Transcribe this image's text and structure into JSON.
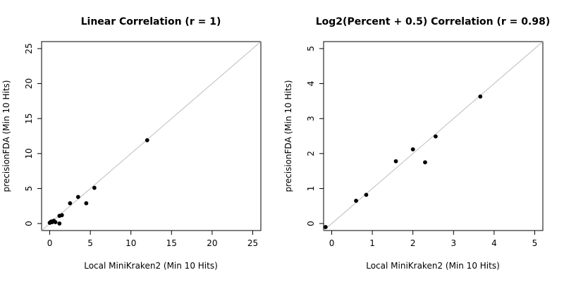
{
  "chart_data": [
    {
      "type": "scatter",
      "title": "Linear Correlation (r = 1)",
      "xlabel": "Local MiniKraken2 (Min 10 Hits)",
      "ylabel": "precisionFDA (Min 10 Hits)",
      "xlim": [
        -1,
        26
      ],
      "ylim": [
        -1,
        26
      ],
      "xticks": [
        "0",
        "5",
        "10",
        "15",
        "20",
        "25"
      ],
      "yticks": [
        "0",
        "5",
        "10",
        "15",
        "20",
        "25"
      ],
      "reference_line": "y = x",
      "grid": false,
      "points": [
        {
          "x": 0.0,
          "y": 0.1
        },
        {
          "x": 0.1,
          "y": 0.2
        },
        {
          "x": 0.2,
          "y": 0.3
        },
        {
          "x": 0.3,
          "y": 0.2
        },
        {
          "x": 0.5,
          "y": 0.4
        },
        {
          "x": 0.7,
          "y": 0.2
        },
        {
          "x": 1.2,
          "y": 0.0
        },
        {
          "x": 1.2,
          "y": 1.1
        },
        {
          "x": 1.5,
          "y": 1.2
        },
        {
          "x": 2.5,
          "y": 2.9
        },
        {
          "x": 3.5,
          "y": 3.8
        },
        {
          "x": 4.5,
          "y": 2.9
        },
        {
          "x": 5.5,
          "y": 5.1
        },
        {
          "x": 12.0,
          "y": 11.9
        }
      ]
    },
    {
      "type": "scatter",
      "title": "Log2(Percent + 0.5) Correlation (r = 0.98)",
      "xlabel": "Local MiniKraken2 (Min 10 Hits)",
      "ylabel": "precisionFDA (Min 10 Hits)",
      "xlim": [
        -0.2,
        5.2
      ],
      "ylim": [
        -0.2,
        5.2
      ],
      "xticks": [
        "0",
        "1",
        "2",
        "3",
        "4",
        "5"
      ],
      "yticks": [
        "0",
        "1",
        "2",
        "3",
        "4",
        "5"
      ],
      "reference_line": "y = x",
      "grid": false,
      "points": [
        {
          "x": -0.15,
          "y": -0.1
        },
        {
          "x": 0.6,
          "y": 0.65
        },
        {
          "x": 0.85,
          "y": 0.82
        },
        {
          "x": 1.58,
          "y": 1.78
        },
        {
          "x": 2.0,
          "y": 2.12
        },
        {
          "x": 2.3,
          "y": 1.75
        },
        {
          "x": 2.56,
          "y": 2.49
        },
        {
          "x": 3.66,
          "y": 3.63
        }
      ]
    }
  ]
}
